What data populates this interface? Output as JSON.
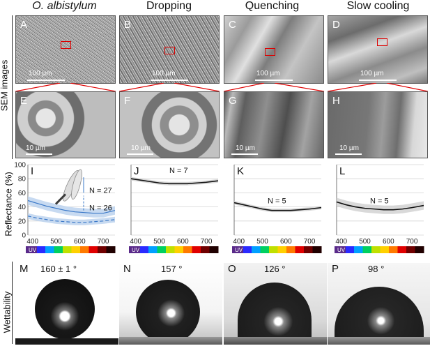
{
  "columns": [
    {
      "title": "O. albistylum",
      "italic": true
    },
    {
      "title": "Dropping",
      "italic": false
    },
    {
      "title": "Quenching",
      "italic": false
    },
    {
      "title": "Slow cooling",
      "italic": false
    }
  ],
  "row_labels": {
    "sem": "SEM images",
    "reflectance": "Reflectance (%)",
    "wettability": "Wettability"
  },
  "sem_panels": [
    {
      "label": "A",
      "scale": "100 µm"
    },
    {
      "label": "B",
      "scale": "100 µm"
    },
    {
      "label": "C",
      "scale": "100 µm"
    },
    {
      "label": "D",
      "scale": "100 µm"
    }
  ],
  "zoom_panels": [
    {
      "label": "E",
      "scale": "10 µm"
    },
    {
      "label": "F",
      "scale": "10 µm"
    },
    {
      "label": "G",
      "scale": "10 µm"
    },
    {
      "label": "H",
      "scale": "10 µm"
    }
  ],
  "wettability_panels": [
    {
      "label": "M",
      "angle": "160 ± 1 °"
    },
    {
      "label": "N",
      "angle": "157 °"
    },
    {
      "label": "O",
      "angle": "126 °"
    },
    {
      "label": "P",
      "angle": "98 °"
    }
  ],
  "spectrum_label": "UV",
  "colors": {
    "blue": "#3a78c8",
    "blue_band": "#b9d1ee",
    "black": "#111111",
    "gray_band": "#cfcfcf",
    "red": "#d00000"
  },
  "chart_data": [
    {
      "type": "line",
      "panel": "I",
      "xlim": [
        380,
        750
      ],
      "ylim": [
        0,
        100
      ],
      "xticks": [
        400,
        500,
        600,
        700
      ],
      "yticks": [
        0,
        20,
        40,
        60,
        80,
        100
      ],
      "annotations": [
        "N = 27",
        "N = 26"
      ],
      "series": [
        {
          "style": "solid-blue",
          "x": [
            380,
            420,
            460,
            500,
            540,
            580,
            620,
            660,
            700,
            750
          ],
          "y": [
            49,
            45,
            41,
            38,
            35,
            33,
            32,
            31,
            31,
            35
          ],
          "band": 6
        },
        {
          "style": "dashed-blue",
          "x": [
            380,
            420,
            460,
            500,
            540,
            580,
            620,
            660,
            700,
            750
          ],
          "y": [
            27,
            24,
            22,
            20,
            19,
            18,
            18,
            19,
            20,
            22
          ],
          "band": 4
        }
      ]
    },
    {
      "type": "line",
      "panel": "J",
      "xlim": [
        380,
        750
      ],
      "ylim": [
        0,
        100
      ],
      "xticks": [
        400,
        500,
        600,
        700
      ],
      "yticks": [
        0,
        20,
        40,
        60,
        80,
        100
      ],
      "annotations": [
        "N = 7"
      ],
      "series": [
        {
          "style": "solid-black",
          "x": [
            380,
            420,
            460,
            500,
            540,
            580,
            620,
            660,
            700,
            750
          ],
          "y": [
            80,
            78,
            76,
            74,
            73,
            73,
            73,
            74,
            75,
            77
          ],
          "band": 2.5
        }
      ]
    },
    {
      "type": "line",
      "panel": "K",
      "xlim": [
        380,
        750
      ],
      "ylim": [
        0,
        100
      ],
      "xticks": [
        400,
        500,
        600,
        700
      ],
      "yticks": [
        0,
        20,
        40,
        60,
        80,
        100
      ],
      "annotations": [
        "N = 5"
      ],
      "series": [
        {
          "style": "solid-black",
          "x": [
            380,
            420,
            460,
            500,
            540,
            580,
            620,
            660,
            700,
            750
          ],
          "y": [
            46,
            43,
            40,
            37,
            35,
            35,
            35,
            36,
            37,
            39
          ],
          "band": 2.5
        }
      ]
    },
    {
      "type": "line",
      "panel": "L",
      "xlim": [
        380,
        750
      ],
      "ylim": [
        0,
        100
      ],
      "xticks": [
        400,
        500,
        600,
        700
      ],
      "yticks": [
        0,
        20,
        40,
        60,
        80,
        100
      ],
      "annotations": [
        "N = 5"
      ],
      "series": [
        {
          "style": "solid-black",
          "x": [
            380,
            420,
            460,
            500,
            540,
            580,
            620,
            660,
            700,
            750
          ],
          "y": [
            47,
            43,
            40,
            38,
            37,
            36,
            36,
            37,
            39,
            42
          ],
          "band": 6
        }
      ]
    }
  ]
}
